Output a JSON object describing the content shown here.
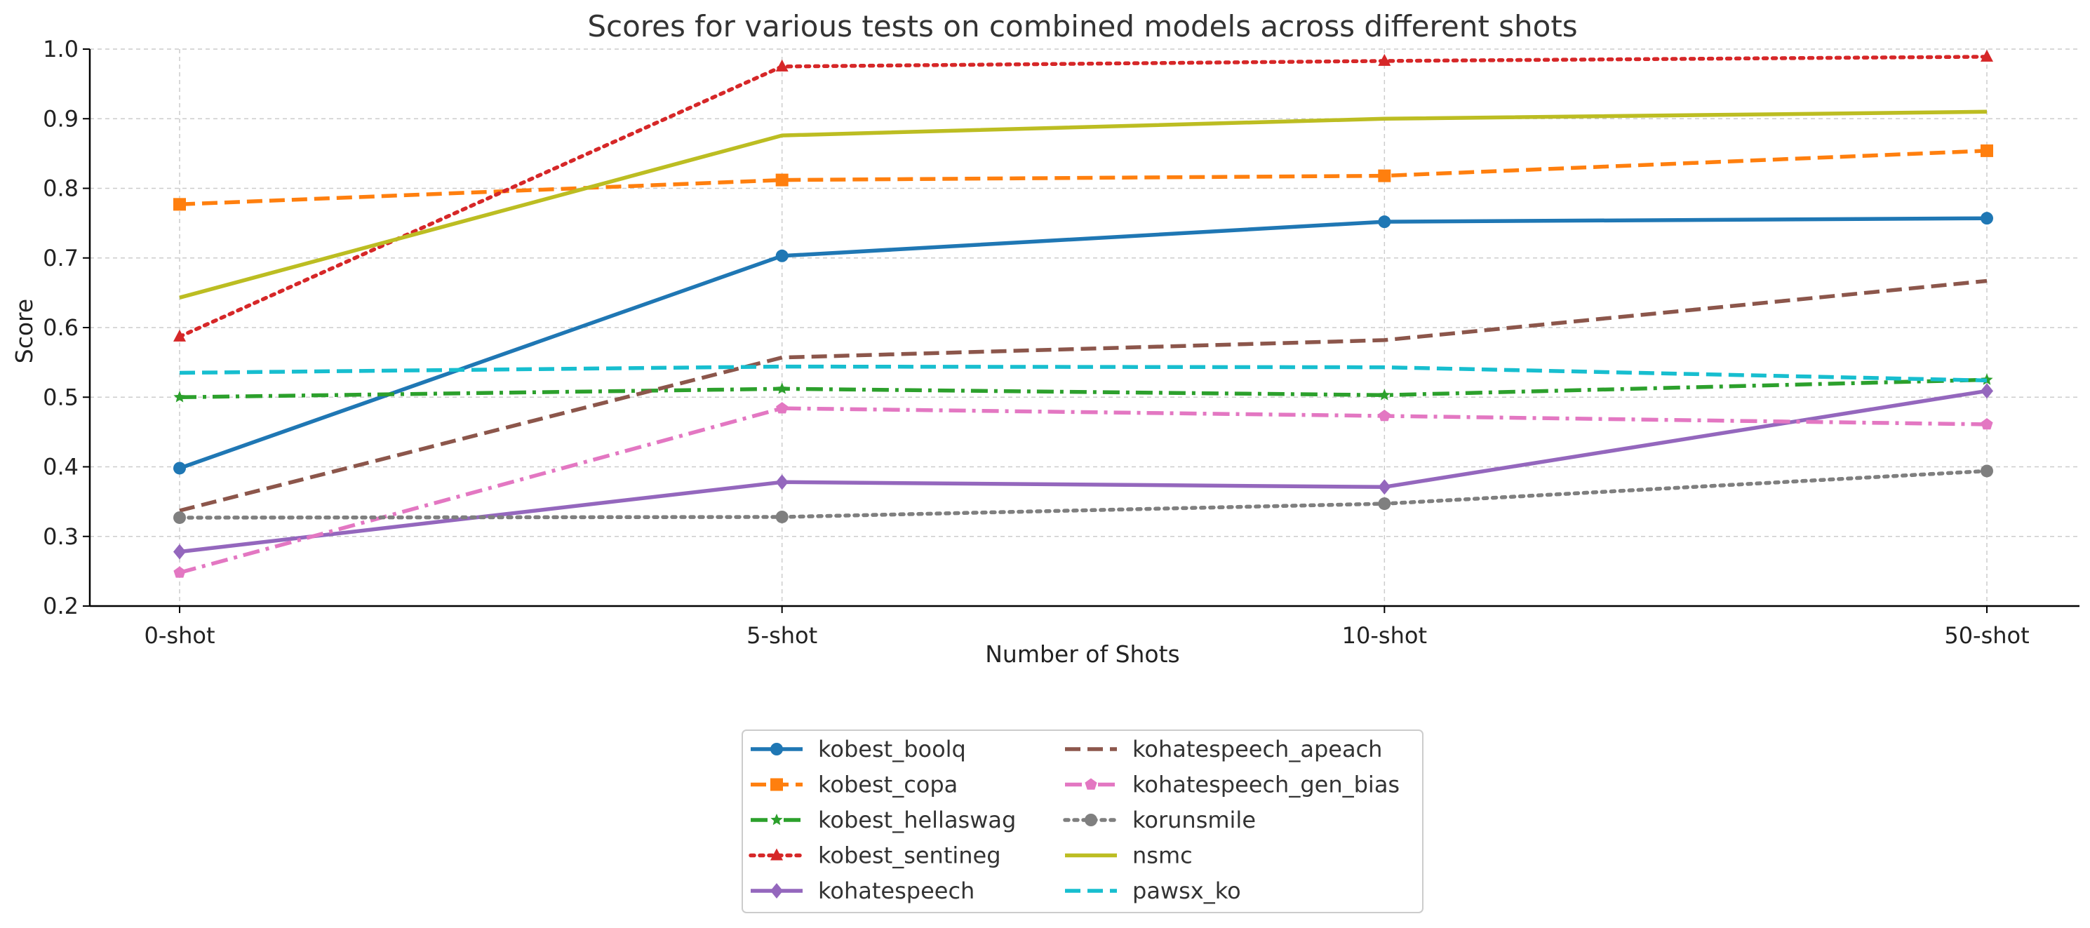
{
  "chart_data": {
    "type": "line",
    "title": "Scores for various tests on combined models across different shots",
    "xlabel": "Number of Shots",
    "ylabel": "Score",
    "categories": [
      "0-shot",
      "5-shot",
      "10-shot",
      "50-shot"
    ],
    "ylim": [
      0.2,
      1.0
    ],
    "yticks": [
      0.2,
      0.3,
      0.4,
      0.5,
      0.6,
      0.7,
      0.8,
      0.9,
      1.0
    ],
    "grid": true,
    "legend_position": "bottom-center",
    "series": [
      {
        "name": "kobest_boolq",
        "values": [
          0.398,
          0.703,
          0.752,
          0.757
        ],
        "color": "#1f77b4",
        "dash": "solid",
        "marker": "circle"
      },
      {
        "name": "kobest_copa",
        "values": [
          0.777,
          0.812,
          0.818,
          0.854
        ],
        "color": "#ff7f0e",
        "dash": "dashed",
        "marker": "square"
      },
      {
        "name": "kobest_hellaswag",
        "values": [
          0.5,
          0.512,
          0.503,
          0.525
        ],
        "color": "#2ca02c",
        "dash": "dashdot",
        "marker": "star"
      },
      {
        "name": "kobest_sentineg",
        "values": [
          0.587,
          0.975,
          0.983,
          0.989
        ],
        "color": "#d62728",
        "dash": "dotted",
        "marker": "triangle"
      },
      {
        "name": "kohatespeech",
        "values": [
          0.278,
          0.378,
          0.371,
          0.509
        ],
        "color": "#9467bd",
        "dash": "solid",
        "marker": "diamond"
      },
      {
        "name": "kohatespeech_apeach",
        "values": [
          0.337,
          0.557,
          0.582,
          0.667
        ],
        "color": "#8c564b",
        "dash": "dashed",
        "marker": "none"
      },
      {
        "name": "kohatespeech_gen_bias",
        "values": [
          0.248,
          0.484,
          0.473,
          0.461
        ],
        "color": "#e377c2",
        "dash": "dashdot",
        "marker": "pentagon"
      },
      {
        "name": "korunsmile",
        "values": [
          0.327,
          0.328,
          0.347,
          0.394
        ],
        "color": "#7f7f7f",
        "dash": "dotted",
        "marker": "circle"
      },
      {
        "name": "nsmc",
        "values": [
          0.643,
          0.876,
          0.9,
          0.91
        ],
        "color": "#bcbd22",
        "dash": "solid",
        "marker": "none"
      },
      {
        "name": "pawsx_ko",
        "values": [
          0.535,
          0.544,
          0.543,
          0.524
        ],
        "color": "#17becf",
        "dash": "dashed",
        "marker": "none"
      }
    ]
  }
}
